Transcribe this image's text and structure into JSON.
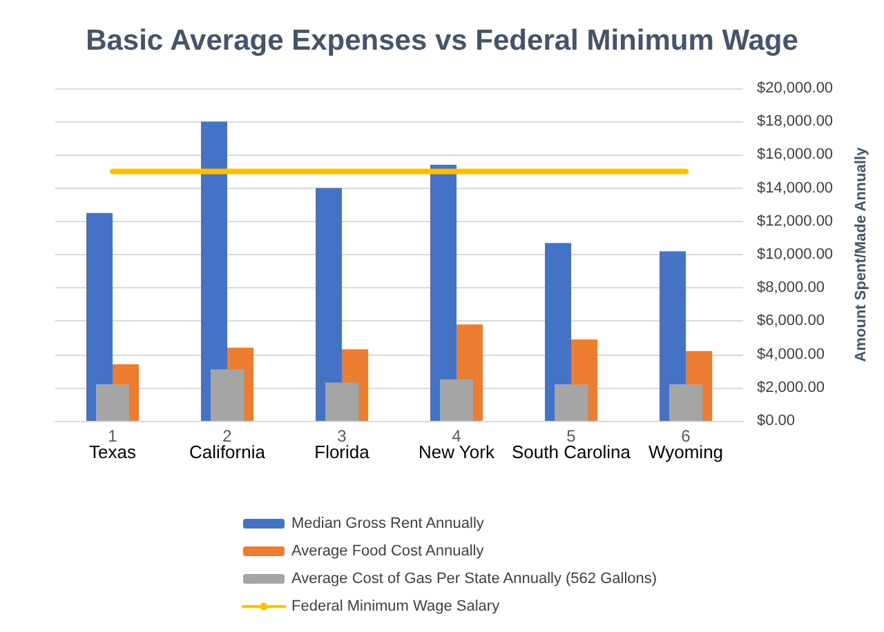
{
  "chart_data": {
    "type": "bar",
    "title": "Basic Average Expenses vs Federal Minimum Wage",
    "categories": [
      "Texas",
      "California",
      "Florida",
      "New York",
      "South Carolina",
      "Wyoming"
    ],
    "ylabel": "Amount Spent/Made Annually",
    "series": [
      {
        "name": "Median Gross Rent Annually",
        "color": "#4472c4",
        "values": [
          12500,
          18000,
          14000,
          15400,
          10700,
          10200
        ]
      },
      {
        "name": "Average Food Cost Annually",
        "color": "#ed7d31",
        "values": [
          3400,
          4400,
          4300,
          5800,
          4900,
          4200
        ]
      },
      {
        "name": "Average Cost of Gas Per State Annually (562 Gallons)",
        "color": "#a5a5a5",
        "values": [
          2200,
          3100,
          2300,
          2500,
          2200,
          2200
        ]
      },
      {
        "name": "Federal Minimum Wage Salary",
        "type": "line",
        "color": "#ffc000",
        "values": [
          15000,
          15000,
          15000,
          15000,
          15000,
          15000
        ]
      }
    ],
    "x2lim": [
      0.5,
      6.5
    ],
    "x2ticks": [
      1,
      2,
      3,
      4,
      5,
      6
    ],
    "ylim": [
      0,
      20000
    ],
    "yticks": [
      {
        "value": 0,
        "label": "$0.00"
      },
      {
        "value": 2000,
        "label": "$2,000.00"
      },
      {
        "value": 4000,
        "label": "$4,000.00"
      },
      {
        "value": 6000,
        "label": "$6,000.00"
      },
      {
        "value": 8000,
        "label": "$8,000.00"
      },
      {
        "value": 10000,
        "label": "$10,000.00"
      },
      {
        "value": 12000,
        "label": "$12,000.00"
      },
      {
        "value": 14000,
        "label": "$14,000.00"
      },
      {
        "value": 16000,
        "label": "$16,000.00"
      },
      {
        "value": 18000,
        "label": "$18,000.00"
      },
      {
        "value": 20000,
        "label": "$20,000.00"
      }
    ],
    "grid": "y",
    "legend": "bottom",
    "marker": "none"
  }
}
